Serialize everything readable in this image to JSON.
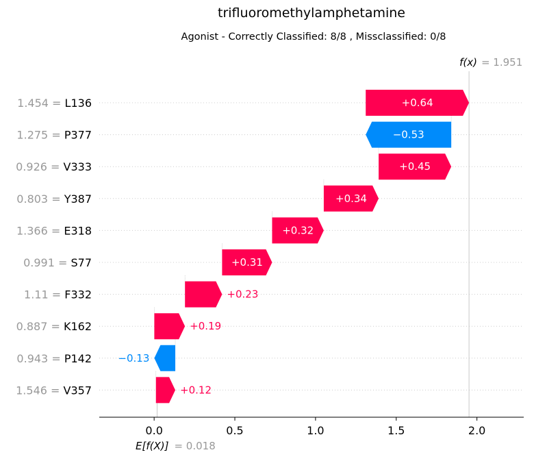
{
  "chart_data": {
    "type": "waterfall",
    "title": "trifluoromethylamphetamine",
    "subtitle": "Agonist - Correctly Classified: 8/8 , Missclassified: 0/8",
    "base_value": 0.018,
    "base_label": "E[f(X)]",
    "base_value_text": "= 0.018",
    "output_value": 1.951,
    "output_label": "f(x)",
    "output_value_text": "= 1.951",
    "xlim": [
      -0.34,
      2.29
    ],
    "xticks": [
      0.0,
      0.5,
      1.0,
      1.5,
      2.0
    ],
    "xtick_labels": [
      "0.0",
      "0.5",
      "1.0",
      "1.5",
      "2.0"
    ],
    "features": [
      {
        "value": "1.454",
        "name": "L136",
        "contribution": 0.64,
        "label": "+0.64",
        "start": 1.311,
        "end": 1.951
      },
      {
        "value": "1.275",
        "name": "P377",
        "contribution": -0.53,
        "label": "−0.53",
        "start": 1.841,
        "end": 1.311
      },
      {
        "value": "0.926",
        "name": "V333",
        "contribution": 0.45,
        "label": "+0.45",
        "start": 1.391,
        "end": 1.841
      },
      {
        "value": "0.803",
        "name": "Y387",
        "contribution": 0.34,
        "label": "+0.34",
        "start": 1.051,
        "end": 1.391
      },
      {
        "value": "1.366",
        "name": "E318",
        "contribution": 0.32,
        "label": "+0.32",
        "start": 0.731,
        "end": 1.051
      },
      {
        "value": "0.991",
        "name": "S77",
        "contribution": 0.31,
        "label": "+0.31",
        "start": 0.421,
        "end": 0.731
      },
      {
        "value": "1.11",
        "name": "F332",
        "contribution": 0.23,
        "label": "+0.23",
        "start": 0.191,
        "end": 0.421
      },
      {
        "value": "0.887",
        "name": "K162",
        "contribution": 0.19,
        "label": "+0.19",
        "start": 0.001,
        "end": 0.191
      },
      {
        "value": "0.943",
        "name": "P142",
        "contribution": -0.13,
        "label": "−0.13",
        "start": 0.131,
        "end": 0.001
      },
      {
        "value": "1.546",
        "name": "V357",
        "contribution": 0.12,
        "label": "+0.12",
        "start": 0.011,
        "end": 0.131
      }
    ],
    "colors": {
      "positive": "#ff0051",
      "negative": "#008bfb"
    }
  }
}
